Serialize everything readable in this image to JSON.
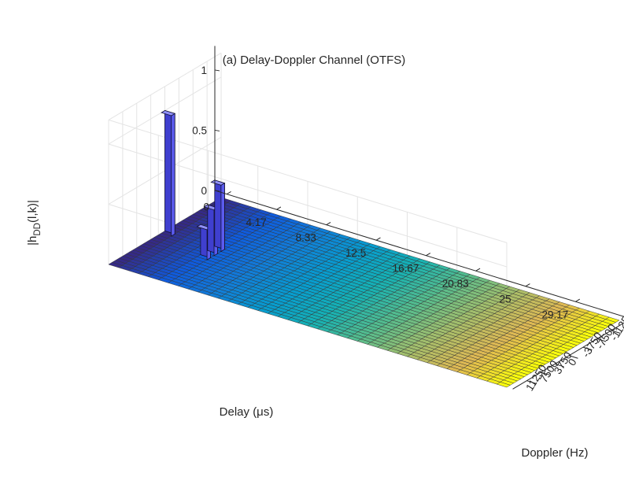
{
  "chart_data": {
    "type": "bar3",
    "title": "(a) Delay-Doppler Channel (OTFS)",
    "xlabel": "Delay (μs)",
    "ylabel": "Doppler (Hz)",
    "zlabel": "|h_DD(l,k)|",
    "x_ticks": [
      "0",
      "4.17",
      "8.33",
      "12.5",
      "16.67",
      "20.83",
      "25",
      "29.17"
    ],
    "x_tick_values": [
      0,
      4.17,
      8.33,
      12.5,
      16.67,
      20.83,
      25,
      29.17
    ],
    "y_ticks": [
      "-15000",
      "-11250",
      "-7500",
      "-3750",
      "0",
      "3750",
      "7500",
      "11250"
    ],
    "y_tick_values": [
      -15000,
      -11250,
      -7500,
      -3750,
      0,
      3750,
      7500,
      11250
    ],
    "z_ticks": [
      "0",
      "0.5",
      "1"
    ],
    "z_tick_values": [
      0,
      0.5,
      1
    ],
    "xlim": [
      0,
      33.3
    ],
    "ylim": [
      -15000,
      15000
    ],
    "zlim": [
      0,
      1.2
    ],
    "grid": true,
    "colormap": "parula",
    "colormap_direction": "colored by delay bin, blue at 0 to yellow at max delay",
    "peaks": [
      {
        "delay_us": 0,
        "doppler_hz": 0,
        "magnitude": 1.0
      },
      {
        "delay_us": 4.17,
        "doppler_hz": 0,
        "magnitude": 0.55
      },
      {
        "delay_us": 4.17,
        "doppler_hz": 1875,
        "magnitude": 0.38
      },
      {
        "delay_us": 4.17,
        "doppler_hz": 3750,
        "magnitude": 0.25
      }
    ]
  }
}
